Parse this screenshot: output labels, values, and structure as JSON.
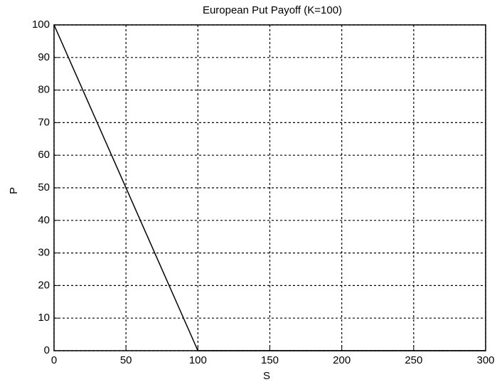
{
  "chart_data": {
    "type": "line",
    "title": "European Put Payoff (K=100)",
    "x_label": "S",
    "y_label": "P",
    "x": [
      0,
      100,
      300
    ],
    "series": [
      {
        "name": "Payoff",
        "color": "#000000",
        "values": [
          100,
          0,
          0
        ]
      }
    ],
    "xlim": [
      0,
      300
    ],
    "xticks": [
      0,
      50,
      100,
      150,
      200,
      250,
      300
    ],
    "ylim": [
      0,
      100
    ],
    "yticks": [
      0,
      10,
      20,
      30,
      40,
      50,
      60,
      70,
      80,
      90,
      100
    ],
    "grid": true
  }
}
